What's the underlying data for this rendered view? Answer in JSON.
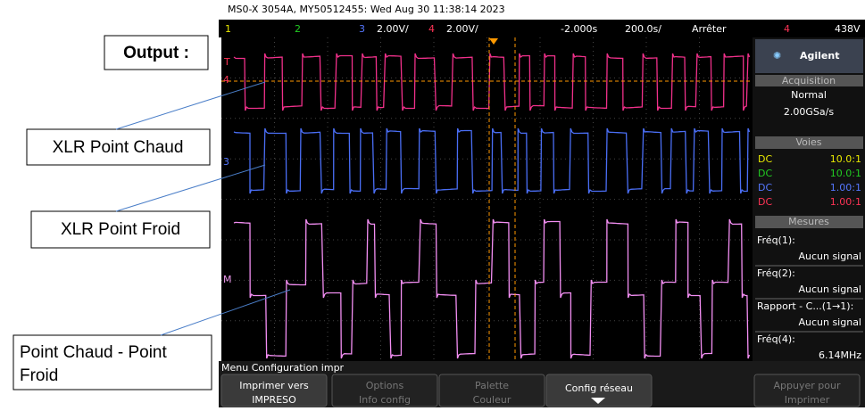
{
  "header": {
    "title": "MS0-X 3054A, MY50512455: Wed Aug 30 11:38:14 2023"
  },
  "annotations": {
    "output": "Output :",
    "trace1": "XLR Point Chaud",
    "trace2": "XLR Point Froid",
    "trace3_line1": "Point Chaud - Point",
    "trace3_line2": "Froid"
  },
  "status_bar": {
    "ch1": "1",
    "ch2": "2",
    "ch3": "3",
    "ch3_scale": "2.00V/",
    "ch4": "4",
    "ch4_scale": "2.00V/",
    "time_offset": "-2.000s",
    "time_scale": "200.0s/",
    "run_state": "Arrêter",
    "trigger_channel": "4",
    "trigger_level": "438V"
  },
  "screen_markers": {
    "trigger": "T",
    "ch4": "4",
    "ch3": "3",
    "math": "M"
  },
  "side_panel": {
    "brand": "Agilent",
    "acquisition": {
      "title": "Acquisition",
      "mode": "Normal",
      "rate": "2.00GSa/s"
    },
    "channels": {
      "title": "Voies",
      "rows": [
        [
          "DC",
          "10.0:1"
        ],
        [
          "DC",
          "10.0:1"
        ],
        [
          "DC",
          "1.00:1"
        ],
        [
          "DC",
          "1.00:1"
        ]
      ]
    },
    "measurements": {
      "title": "Mesures",
      "items": [
        {
          "label": "Fréq(1):",
          "value": "Aucun signal"
        },
        {
          "label": "Fréq(2):",
          "value": "Aucun signal"
        },
        {
          "label": "Rapport - C...(1→1):",
          "value": "Aucun signal"
        },
        {
          "label": "Fréq(4):",
          "value": "6.14MHz"
        }
      ]
    }
  },
  "menu": {
    "title": "Menu Configuration impr",
    "softkeys": [
      {
        "line1": "Imprimer vers",
        "line2": "IMPRESO"
      },
      {
        "line1": "Options",
        "line2": "Info config"
      },
      {
        "line1": "Palette",
        "line2": "Couleur"
      },
      {
        "line1": "Config réseau"
      },
      {
        "line1": "Appuyer pour",
        "line2": "Imprimer"
      }
    ]
  }
}
